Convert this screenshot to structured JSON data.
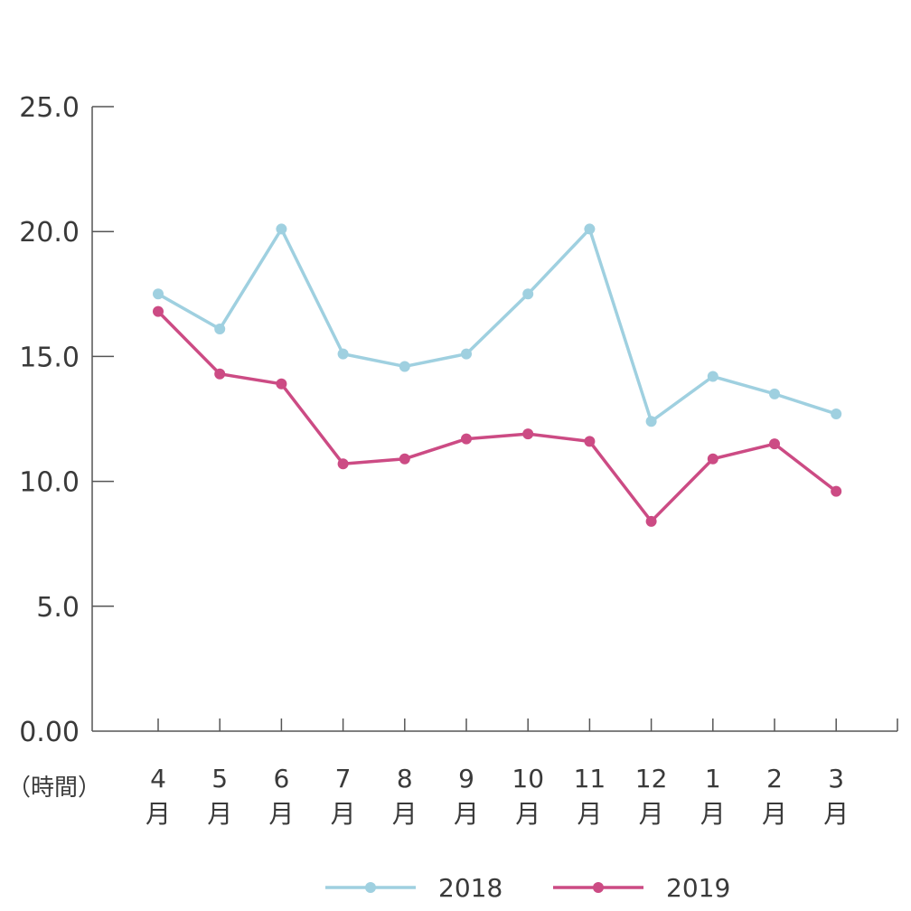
{
  "chart_data": {
    "type": "line",
    "unit_label": "（時間）",
    "categories": [
      [
        "4",
        "月"
      ],
      [
        "5",
        "月"
      ],
      [
        "6",
        "月"
      ],
      [
        "7",
        "月"
      ],
      [
        "8",
        "月"
      ],
      [
        "9",
        "月"
      ],
      [
        "10",
        "月"
      ],
      [
        "11",
        "月"
      ],
      [
        "12",
        "月"
      ],
      [
        "1",
        "月"
      ],
      [
        "2",
        "月"
      ],
      [
        "3",
        "月"
      ]
    ],
    "ylim": [
      0,
      25
    ],
    "yticks": [
      0,
      5,
      10,
      15,
      20,
      25
    ],
    "ytick_labels": [
      "0.00",
      "5.0",
      "10.0",
      "15.0",
      "20.0",
      "25.0"
    ],
    "grid": false,
    "legend_position": "bottom-center",
    "series": [
      {
        "name": "2018",
        "color": "#9fd0e0",
        "values": [
          17.5,
          16.1,
          20.1,
          15.1,
          14.6,
          15.1,
          17.5,
          20.1,
          12.4,
          14.2,
          13.5,
          12.7
        ]
      },
      {
        "name": "2019",
        "color": "#cc4b84",
        "values": [
          16.8,
          14.3,
          13.9,
          10.7,
          10.9,
          11.7,
          11.9,
          11.6,
          8.4,
          10.9,
          11.5,
          9.6
        ]
      }
    ]
  }
}
